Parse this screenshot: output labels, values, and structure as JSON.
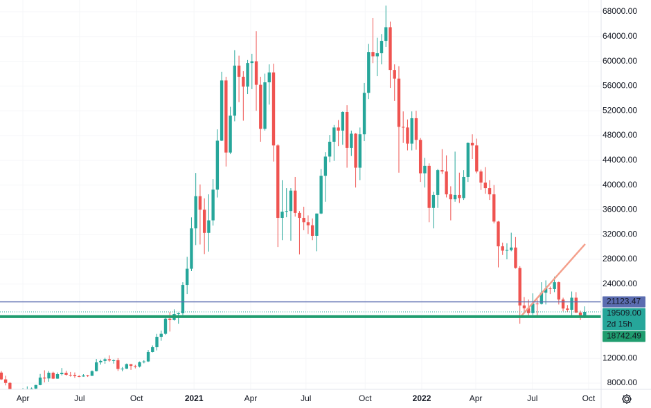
{
  "chart_data": {
    "type": "candlestick",
    "up_color": "#26a69a",
    "down_color": "#ef5350",
    "grid": true,
    "xlim": [
      -0.3,
      138.8
    ],
    "ylim": [
      6994,
      69900
    ],
    "xticks": [
      {
        "value": 5,
        "label": "Apr"
      },
      {
        "value": 18.1,
        "label": "Jul"
      },
      {
        "value": 31.3,
        "label": "Oct"
      },
      {
        "value": 44.6,
        "label": "2021"
      },
      {
        "value": 57.7,
        "label": "Apr"
      },
      {
        "value": 70.5,
        "label": "Jul"
      },
      {
        "value": 84.2,
        "label": "Oct"
      },
      {
        "value": 97.3,
        "label": "2022"
      },
      {
        "value": 109.8,
        "label": "Apr"
      },
      {
        "value": 122.9,
        "label": "Jul"
      },
      {
        "value": 135.9,
        "label": "Oct"
      }
    ],
    "yticks": [
      {
        "value": 8000,
        "label": "8000.00"
      },
      {
        "value": 12000,
        "label": "12000.00"
      },
      {
        "value": 24000,
        "label": "24000.00"
      },
      {
        "value": 28000,
        "label": "28000.00"
      },
      {
        "value": 32000,
        "label": "32000.00"
      },
      {
        "value": 36000,
        "label": "36000.00"
      },
      {
        "value": 40000,
        "label": "40000.00"
      },
      {
        "value": 44000,
        "label": "44000.00"
      },
      {
        "value": 48000,
        "label": "48000.00"
      },
      {
        "value": 52000,
        "label": "52000.00"
      },
      {
        "value": 56000,
        "label": "56000.00"
      },
      {
        "value": 60000,
        "label": "60000.00"
      },
      {
        "value": 64000,
        "label": "64000.00"
      },
      {
        "value": 68000,
        "label": "68000.00"
      }
    ],
    "open": [
      9700,
      8600,
      8030,
      5360,
      5830,
      5880,
      6780,
      6880,
      7120,
      7690,
      8890,
      8750,
      9680,
      8720,
      9450,
      9670,
      9340,
      9300,
      9120,
      9070,
      9230,
      9170,
      9930,
      11350,
      11590,
      11860,
      11660,
      11700,
      10280,
      10330,
      11070,
      10780,
      10670,
      11380,
      11500,
      13030,
      13800,
      15480,
      15970,
      18420,
      18190,
      19170,
      19280,
      23860,
      26480,
      33000,
      38200,
      36020,
      32270,
      34300,
      39260,
      47170,
      56900,
      45250,
      51210,
      59300,
      57500,
      55900,
      59720,
      60000,
      56200,
      49080,
      56600,
      58200,
      46400,
      34700,
      35700,
      35800,
      39100,
      35500,
      34700,
      34000,
      33500,
      31800,
      35400,
      41500,
      44600,
      47000,
      49300,
      48800,
      51800,
      46000,
      48300,
      42800,
      48200,
      54900,
      61500,
      60800,
      61300,
      63300,
      65500,
      58600,
      57200,
      49400,
      49300,
      46700,
      50800,
      47300,
      41900,
      43100,
      36300,
      38400,
      42400,
      42200,
      38500,
      37700,
      38400,
      37900,
      41300,
      46800,
      46400,
      42200,
      40400,
      39500,
      38500,
      34100,
      30100,
      29400,
      29500,
      29900,
      26600,
      20550,
      20100,
      19300,
      20850,
      20800,
      22600,
      23300,
      23200,
      24300,
      21500,
      20050,
      19850,
      21800,
      19400,
      18950
    ],
    "high": [
      9950,
      9190,
      8180,
      6900,
      6950,
      7190,
      7470,
      7290,
      7730,
      9480,
      10070,
      9950,
      9840,
      9720,
      10440,
      9990,
      9800,
      9720,
      9300,
      9450,
      9340,
      10050,
      11900,
      11800,
      12080,
      12480,
      11830,
      12040,
      10600,
      11170,
      10990,
      10950,
      11490,
      11700,
      13350,
      14090,
      15960,
      16480,
      18800,
      19480,
      19920,
      19420,
      24300,
      28400,
      34780,
      41950,
      40100,
      37850,
      38500,
      40950,
      49000,
      58300,
      57500,
      52640,
      61800,
      60900,
      58400,
      60200,
      61200,
      64850,
      57500,
      58000,
      59500,
      59600,
      46600,
      40800,
      39500,
      39500,
      41300,
      35800,
      36500,
      35100,
      34600,
      35400,
      42600,
      45300,
      48100,
      49700,
      50500,
      51900,
      52900,
      48800,
      48400,
      49300,
      56500,
      62800,
      67000,
      63800,
      64400,
      69000,
      66400,
      59500,
      59200,
      51900,
      50600,
      51900,
      52000,
      47600,
      44400,
      43500,
      38900,
      42600,
      45800,
      44800,
      39800,
      45400,
      42000,
      42400,
      46900,
      48200,
      47500,
      42500,
      42900,
      40800,
      40000,
      34200,
      30700,
      30600,
      32300,
      31600,
      26900,
      21900,
      21500,
      22500,
      21500,
      24300,
      24600,
      23600,
      25200,
      24400,
      21800,
      20600,
      22800,
      22700,
      19700,
      20400
    ],
    "low": [
      8500,
      7630,
      3850,
      4450,
      5660,
      5860,
      6750,
      6460,
      6800,
      7650,
      8110,
      8220,
      8660,
      8690,
      9240,
      9200,
      9050,
      8840,
      8950,
      9030,
      9000,
      9160,
      9880,
      10980,
      11130,
      11450,
      11150,
      9960,
      9900,
      10270,
      10140,
      10380,
      10530,
      11200,
      11420,
      12960,
      13280,
      14850,
      15790,
      16330,
      18100,
      17600,
      19000,
      22400,
      26100,
      30300,
      30400,
      28850,
      29250,
      33450,
      37990,
      47100,
      43000,
      45000,
      50300,
      53400,
      50400,
      54700,
      55500,
      52000,
      47000,
      48800,
      53000,
      43800,
      30000,
      31100,
      34800,
      31000,
      34900,
      28800,
      32700,
      32100,
      31100,
      29300,
      35300,
      37300,
      43700,
      43900,
      46300,
      46500,
      42800,
      44700,
      39600,
      40800,
      47100,
      53900,
      59700,
      57600,
      59500,
      62300,
      55700,
      53600,
      42000,
      46800,
      45600,
      45600,
      45700,
      40500,
      39600,
      34000,
      33000,
      36300,
      41800,
      38000,
      34300,
      37300,
      37100,
      37600,
      40500,
      44200,
      41900,
      39200,
      38600,
      37600,
      33800,
      26700,
      28700,
      28000,
      29300,
      26500,
      17600,
      19600,
      18800,
      19000,
      18900,
      20700,
      20700,
      22400,
      22700,
      20700,
      19600,
      19500,
      18600,
      19300,
      18200,
      18500
    ],
    "close": [
      8600,
      8030,
      5360,
      5830,
      5880,
      6780,
      6880,
      7120,
      7690,
      8890,
      8750,
      9680,
      8720,
      9450,
      9670,
      9340,
      9300,
      9120,
      9070,
      9230,
      9170,
      9930,
      11350,
      11590,
      11860,
      11660,
      11700,
      10280,
      10330,
      11070,
      10780,
      10670,
      11380,
      11500,
      13030,
      13800,
      15480,
      15970,
      18420,
      18190,
      19170,
      19280,
      23860,
      26480,
      33000,
      38200,
      36020,
      32270,
      34300,
      39260,
      47170,
      56900,
      45250,
      51210,
      59300,
      57500,
      55900,
      59720,
      60000,
      56200,
      49080,
      56600,
      58200,
      46400,
      34700,
      35700,
      35800,
      39100,
      35500,
      34700,
      34000,
      33500,
      31800,
      35400,
      41500,
      44600,
      47000,
      49300,
      48800,
      51800,
      46000,
      48300,
      42800,
      48200,
      54900,
      61500,
      60800,
      61300,
      63300,
      65500,
      58600,
      57200,
      49400,
      49300,
      46700,
      50800,
      47300,
      41900,
      43100,
      36300,
      38400,
      42400,
      42200,
      38500,
      37700,
      38400,
      37900,
      41300,
      46800,
      46400,
      42200,
      40400,
      39500,
      38500,
      34100,
      30100,
      29400,
      29500,
      29900,
      26600,
      20550,
      20100,
      19300,
      20850,
      20800,
      22600,
      23300,
      23200,
      24300,
      21500,
      20050,
      19850,
      21800,
      19400,
      18950,
      19509
    ],
    "price_lines": [
      {
        "price": 21123.47,
        "color": "#5b6cb0",
        "style": "thin"
      },
      {
        "price": {
          "value": 19509,
          "label": "19509.00"
        },
        "countdown": "2d 15h",
        "color": "#26a69a",
        "style": "dotted"
      },
      {
        "price": 18742.49,
        "color": "#1f9d6f",
        "style": "thick"
      }
    ],
    "trend_line": {
      "x": [
        120.2,
        135.1
      ],
      "y": [
        18740,
        30460
      ],
      "color": "#f4a08c"
    }
  }
}
